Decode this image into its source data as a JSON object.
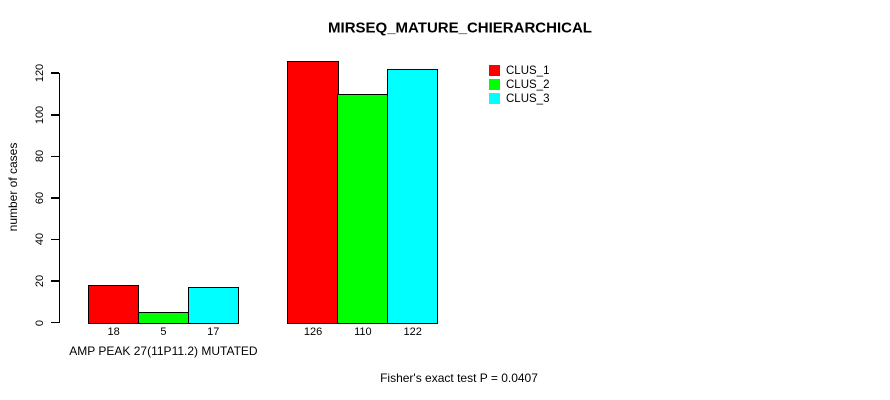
{
  "page": {
    "background": "#ffffff"
  },
  "chart_data": {
    "type": "bar",
    "title": "MIRSEQ_MATURE_CHIERARCHICAL",
    "ylabel": "number of cases",
    "xlabel": "",
    "ylim": [
      0,
      126
    ],
    "yticks": [
      0,
      20,
      40,
      60,
      80,
      100,
      120
    ],
    "categories": [
      "AMP PEAK 27(11P11.2) MUTATED",
      ""
    ],
    "series": [
      {
        "name": "CLUS_1",
        "color": "#ff0000",
        "values": [
          18,
          126
        ]
      },
      {
        "name": "CLUS_2",
        "color": "#00ff00",
        "values": [
          5,
          110
        ]
      },
      {
        "name": "CLUS_3",
        "color": "#00ffff",
        "values": [
          17,
          122
        ]
      }
    ],
    "show_value_labels": true,
    "legend": {
      "position": "top-right",
      "entries": [
        "CLUS_1",
        "CLUS_2",
        "CLUS_3"
      ]
    },
    "annotation": "Fisher's exact test P = 0.0407",
    "grid": false,
    "axis_color": "#000000",
    "bar_border_color": "#000000",
    "text_color": "#000000"
  }
}
